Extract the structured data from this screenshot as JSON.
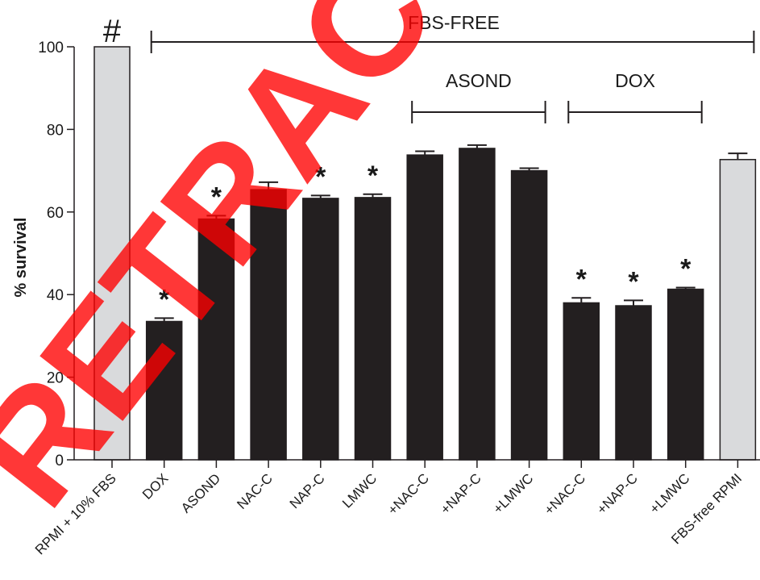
{
  "chart_data": {
    "type": "bar",
    "ylabel": "% survival",
    "ylim": [
      0,
      100
    ],
    "yticks": [
      0,
      20,
      40,
      60,
      80,
      100
    ],
    "categories": [
      "RPMI + 10% FBS",
      "DOX",
      "ASOND",
      "NAC-C",
      "NAP-C",
      "LMWC",
      "+NAC-C",
      "+NAP-C",
      "+LMWC",
      "+NAC-C",
      "+NAP-C",
      "+LMWC",
      "FBS-free RPMI"
    ],
    "values": [
      100,
      33.5,
      58.3,
      65.4,
      63.3,
      63.5,
      73.8,
      75.4,
      70.0,
      38.0,
      37.3,
      41.3,
      72.7
    ],
    "errors": [
      0,
      0.8,
      0.8,
      1.8,
      0.7,
      0.8,
      0.9,
      0.8,
      0.6,
      1.2,
      1.3,
      0.4,
      1.5
    ],
    "bar_colors": [
      "#d9dadc",
      "#231f20",
      "#231f20",
      "#231f20",
      "#231f20",
      "#231f20",
      "#231f20",
      "#231f20",
      "#231f20",
      "#231f20",
      "#231f20",
      "#231f20",
      "#d9dadc"
    ],
    "markers": [
      "#",
      "*",
      "*",
      "",
      "*",
      "*",
      "",
      "",
      "",
      "*",
      "*",
      "*",
      ""
    ],
    "group_brackets": [
      {
        "label": "FBS-FREE",
        "from": 1,
        "to": 12
      },
      {
        "label": "ASOND",
        "from": 6,
        "to": 8
      },
      {
        "label": "DOX",
        "from": 9,
        "to": 11
      }
    ]
  },
  "watermark": {
    "text": "RETRACTED",
    "color": "#ff0000"
  }
}
